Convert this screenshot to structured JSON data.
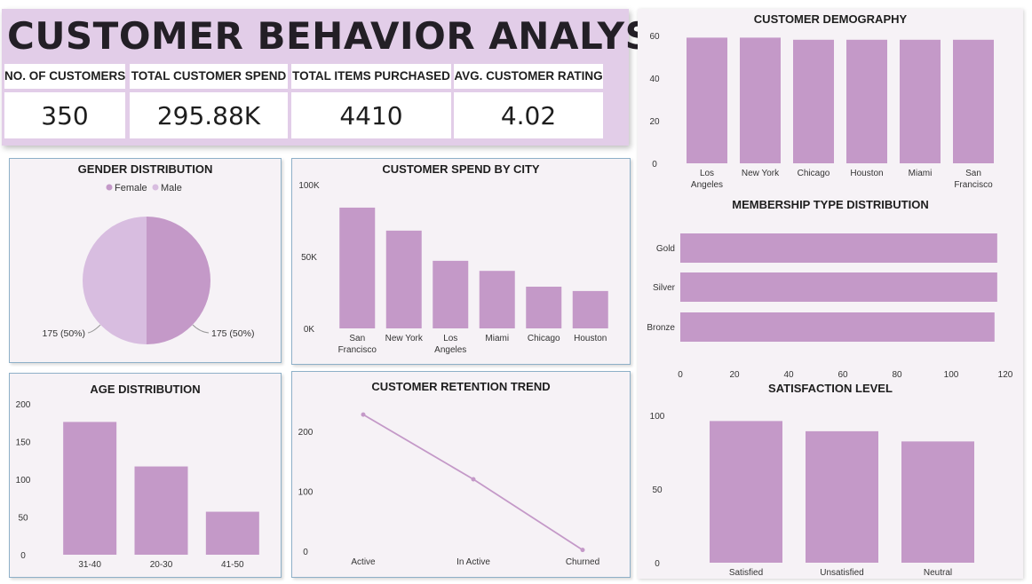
{
  "header": {
    "title": "CUSTOMER BEHAVIOR ANALYSIS",
    "kpis": [
      {
        "label": "NO. OF CUSTOMERS",
        "value": "350"
      },
      {
        "label": "TOTAL CUSTOMER SPEND",
        "value": "295.88K"
      },
      {
        "label": "TOTAL ITEMS PURCHASED",
        "value": "4410"
      },
      {
        "label": "AVG. CUSTOMER RATING",
        "value": "4.02"
      }
    ]
  },
  "colors": {
    "bar": "#c499c8",
    "male": "#d8bde0",
    "female": "#c499c8",
    "text": "#333333"
  },
  "chart_data": [
    {
      "id": "gender",
      "type": "pie",
      "title": "GENDER DISTRIBUTION",
      "categories": [
        "Female",
        "Male"
      ],
      "values": [
        175,
        175
      ],
      "labels": [
        "175 (50%)",
        "175 (50%)"
      ],
      "legend": "top"
    },
    {
      "id": "spend_city",
      "type": "bar",
      "title": "CUSTOMER SPEND BY CITY",
      "categories": [
        "San Francisco",
        "New York",
        "Los Angeles",
        "Miami",
        "Chicago",
        "Houston"
      ],
      "values": [
        84000,
        68000,
        47000,
        40000,
        29000,
        26000
      ],
      "yticks": [
        "0K",
        "50K",
        "100K"
      ],
      "ylim": [
        0,
        100000
      ]
    },
    {
      "id": "age",
      "type": "bar",
      "title": "AGE DISTRIBUTION",
      "categories": [
        "31-40",
        "20-30",
        "41-50"
      ],
      "values": [
        176,
        117,
        57
      ],
      "yticks": [
        "0",
        "50",
        "100",
        "150",
        "200"
      ],
      "ylim": [
        0,
        200
      ]
    },
    {
      "id": "retention",
      "type": "line",
      "title": "CUSTOMER RETENTION TREND",
      "categories": [
        "Active",
        "In Active",
        "Churned"
      ],
      "values": [
        228,
        120,
        2
      ],
      "yticks": [
        "0",
        "100",
        "200"
      ],
      "ylim": [
        0,
        240
      ]
    },
    {
      "id": "demography",
      "type": "bar",
      "title": "CUSTOMER DEMOGRAPHY",
      "categories": [
        "Los Angeles",
        "New York",
        "Chicago",
        "Houston",
        "Miami",
        "San Francisco"
      ],
      "values": [
        59,
        59,
        58,
        58,
        58,
        58
      ],
      "yticks": [
        "0",
        "20",
        "40",
        "60"
      ],
      "ylim": [
        0,
        60
      ]
    },
    {
      "id": "membership",
      "type": "bar",
      "orientation": "horizontal",
      "title": "MEMBERSHIP TYPE DISTRIBUTION",
      "categories": [
        "Gold",
        "Silver",
        "Bronze"
      ],
      "values": [
        117,
        117,
        116
      ],
      "xticks": [
        "0",
        "20",
        "40",
        "60",
        "80",
        "100",
        "120"
      ],
      "xlim": [
        0,
        120
      ]
    },
    {
      "id": "satisfaction",
      "type": "bar",
      "title": "SATISFACTION LEVEL",
      "categories": [
        "Satisfied",
        "Unsatisfied",
        "Neutral"
      ],
      "values": [
        125,
        116,
        107
      ],
      "yticks": [
        "0",
        "50",
        "100"
      ],
      "ylim": [
        0,
        130
      ]
    }
  ]
}
